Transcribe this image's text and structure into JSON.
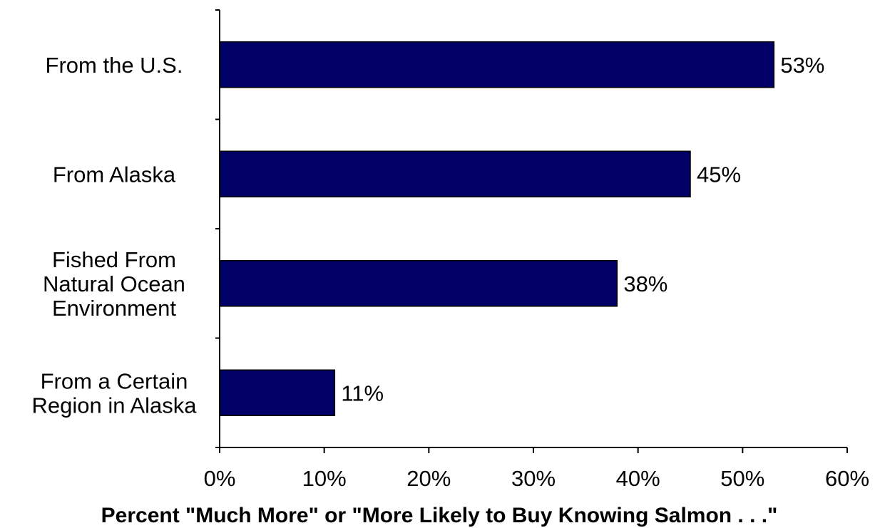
{
  "chart_data": {
    "type": "bar",
    "orientation": "horizontal",
    "categories": [
      [
        "From the U.S."
      ],
      [
        "From Alaska"
      ],
      [
        "Fished From",
        "Natural Ocean",
        "Environment"
      ],
      [
        "From a Certain",
        "Region in Alaska"
      ]
    ],
    "values": [
      53,
      45,
      38,
      11
    ],
    "value_labels": [
      "53%",
      "45%",
      "38%",
      "11%"
    ],
    "xlabel": "Percent \"Much More\" or \"More Likely to Buy Knowing Salmon . . .\"",
    "xlim": [
      0,
      60
    ],
    "xticks": [
      0,
      10,
      20,
      30,
      40,
      50,
      60
    ],
    "xtick_labels": [
      "0%",
      "10%",
      "20%",
      "30%",
      "40%",
      "50%",
      "60%"
    ],
    "bar_color": "#000066",
    "grid": false,
    "legend": "none"
  }
}
